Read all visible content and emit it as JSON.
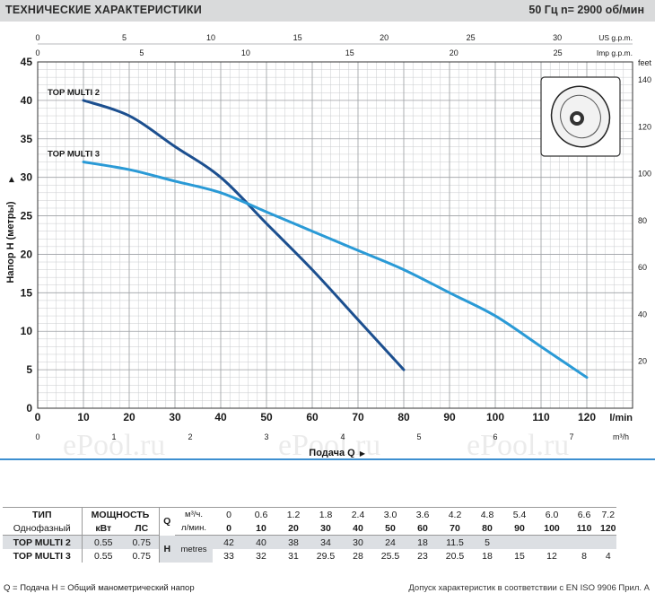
{
  "header": {
    "title": "ТЕХНИЧЕСКИЕ ХАРАКТЕРИСТИКИ",
    "speed": "50 Гц    n= 2900  об/мин"
  },
  "chart_data": {
    "type": "line",
    "xlabel": "Подача Q",
    "ylabel": "Напор H  (метры)",
    "xlim": [
      0,
      130
    ],
    "ylim": [
      0,
      45
    ],
    "x_unit": "l/min",
    "x_ticks": [
      0,
      10,
      20,
      30,
      40,
      50,
      60,
      70,
      80,
      90,
      100,
      110,
      120
    ],
    "y_ticks": [
      0,
      5,
      10,
      15,
      20,
      25,
      30,
      35,
      40,
      45
    ],
    "feet_axis": {
      "label": "feet",
      "ticks": [
        20,
        40,
        60,
        80,
        100,
        120,
        140
      ]
    },
    "us_gpm_axis": {
      "label": "US g.p.m.",
      "ticks": [
        0,
        5,
        10,
        15,
        20,
        25,
        30
      ]
    },
    "imp_gpm_axis": {
      "label": "Imp g.p.m.",
      "ticks": [
        0,
        5,
        10,
        15,
        20,
        25
      ]
    },
    "m3h_axis": {
      "label": "m³/h",
      "ticks": [
        0,
        1,
        2,
        3,
        4,
        5,
        6,
        7
      ]
    },
    "grid": true,
    "series": [
      {
        "name": "TOP MULTI 2",
        "color": "#1c4f8f",
        "x": [
          10,
          20,
          30,
          40,
          50,
          60,
          70,
          80
        ],
        "y": [
          40,
          38,
          34,
          30,
          24,
          18,
          11.5,
          5
        ]
      },
      {
        "name": "TOP MULTI 3",
        "color": "#2a9ad6",
        "x": [
          10,
          20,
          30,
          40,
          50,
          60,
          70,
          80,
          90,
          100,
          110,
          120
        ],
        "y": [
          32,
          31,
          29.5,
          28,
          25.5,
          23,
          20.5,
          18,
          15,
          12,
          8,
          4
        ]
      }
    ]
  },
  "table": {
    "type_label": "ТИП",
    "phase_label": "Однофазный",
    "power_label": "МОЩНОСТЬ",
    "kw_label": "кВт",
    "hp_label": "ЛС",
    "q_label": "Q",
    "h_label": "H",
    "h_unit": "metres",
    "q_unit_m3": "м³/ч.",
    "q_unit_lmin": "л/мин.",
    "m3h": [
      "0",
      "0.6",
      "1.2",
      "1.8",
      "2.4",
      "3.0",
      "3.6",
      "4.2",
      "4.8",
      "5.4",
      "6.0",
      "6.6",
      "7.2"
    ],
    "lmin": [
      "0",
      "10",
      "20",
      "30",
      "40",
      "50",
      "60",
      "70",
      "80",
      "90",
      "100",
      "110",
      "120"
    ],
    "rows": [
      {
        "model": "TOP MULTI 2",
        "kw": "0.55",
        "hp": "0.75",
        "h": [
          "42",
          "40",
          "38",
          "34",
          "30",
          "24",
          "18",
          "11.5",
          "5",
          "",
          "",
          "",
          ""
        ]
      },
      {
        "model": "TOP MULTI 3",
        "kw": "0.55",
        "hp": "0.75",
        "h": [
          "33",
          "32",
          "31",
          "29.5",
          "28",
          "25.5",
          "23",
          "20.5",
          "18",
          "15",
          "12",
          "8",
          "4"
        ]
      }
    ]
  },
  "footer": {
    "legend": "Q = Подача   H = Общий манометрический напор",
    "note": "Допуск характеристик в соответствии с EN ISO 9906 Прил. A"
  },
  "watermark": "ePool.ru"
}
